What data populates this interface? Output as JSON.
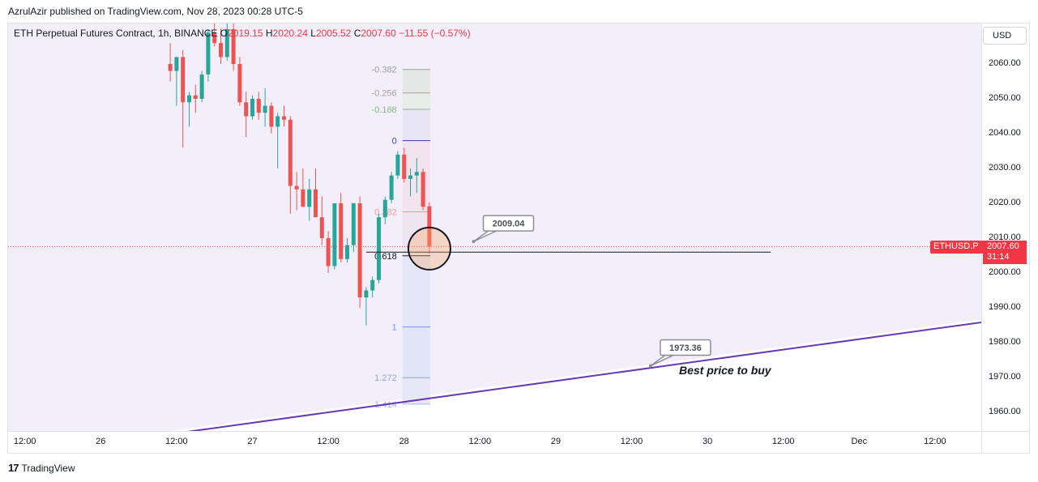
{
  "publisher_line": "AzrulAzir published on TradingView.com, Nov 28, 2023 00:28 UTC-5",
  "legend": {
    "title": "ETH Perpetual Futures Contract, 1h, BINANCE",
    "o_label": "O",
    "o": "2019.15",
    "h_label": "H",
    "h": "2020.24",
    "l_label": "L",
    "l": "2005.52",
    "c_label": "C",
    "c": "2007.60",
    "change": "−11.55 (−0.57%)"
  },
  "currency_button": "USD",
  "symbol_tag": "ETHUSD.P",
  "price_tag": {
    "price": "2007.60",
    "countdown": "31:14"
  },
  "footer_brand": "TradingView",
  "colors": {
    "up": "#26a69a",
    "down": "#ef5350",
    "trendline": "#673ab7",
    "bg_tint": "#f3effa",
    "fib_tint": "#dfe3f7"
  },
  "chart_data": {
    "type": "candlestick",
    "symbol": "ETHUSD.P",
    "timeframe": "1h",
    "ylim": [
      1954,
      2071
    ],
    "y_ticks": [
      "2060.00",
      "2050.00",
      "2040.00",
      "2030.00",
      "2020.00",
      "2010.00",
      "2000.00",
      "1990.00",
      "1980.00",
      "1970.00",
      "1960.00"
    ],
    "y_tick_values": [
      2060,
      2050,
      2040,
      2030,
      2020,
      2010,
      2000,
      1990,
      1980,
      1970,
      1960
    ],
    "x_ticks": [
      "12:00",
      "26",
      "12:00",
      "27",
      "12:00",
      "28",
      "12:00",
      "29",
      "12:00",
      "30",
      "12:00",
      "Dec",
      "12:00"
    ],
    "x_tick_hours": [
      -36,
      -24,
      -12,
      0,
      12,
      24,
      36,
      48,
      60,
      72,
      84,
      96,
      108
    ],
    "last_price": 2007.6,
    "candles_note": "hour offsets from Nov 27 00:00, OHLC",
    "candles": [
      {
        "t": -13,
        "o": 2060,
        "h": 2066,
        "l": 2055,
        "c": 2058
      },
      {
        "t": -12,
        "o": 2058,
        "h": 2062,
        "l": 2048,
        "c": 2062
      },
      {
        "t": -11,
        "o": 2062,
        "h": 2064,
        "l": 2036,
        "c": 2049
      },
      {
        "t": -10,
        "o": 2049,
        "h": 2052,
        "l": 2042,
        "c": 2051
      },
      {
        "t": -9,
        "o": 2051,
        "h": 2054,
        "l": 2046,
        "c": 2050
      },
      {
        "t": -8,
        "o": 2050,
        "h": 2058,
        "l": 2049,
        "c": 2057
      },
      {
        "t": -7,
        "o": 2057,
        "h": 2070,
        "l": 2055,
        "c": 2069
      },
      {
        "t": -6,
        "o": 2069,
        "h": 2072,
        "l": 2065,
        "c": 2066
      },
      {
        "t": -5,
        "o": 2066,
        "h": 2070,
        "l": 2060,
        "c": 2062
      },
      {
        "t": -4,
        "o": 2062,
        "h": 2072,
        "l": 2061,
        "c": 2070
      },
      {
        "t": -3,
        "o": 2070,
        "h": 2072,
        "l": 2058,
        "c": 2060
      },
      {
        "t": -2,
        "o": 2060,
        "h": 2062,
        "l": 2048,
        "c": 2049
      },
      {
        "t": -1,
        "o": 2049,
        "h": 2052,
        "l": 2039,
        "c": 2045
      },
      {
        "t": 0,
        "o": 2045,
        "h": 2051,
        "l": 2044,
        "c": 2050
      },
      {
        "t": 1,
        "o": 2050,
        "h": 2052,
        "l": 2044,
        "c": 2046
      },
      {
        "t": 2,
        "o": 2046,
        "h": 2053,
        "l": 2042,
        "c": 2048
      },
      {
        "t": 3,
        "o": 2048,
        "h": 2049,
        "l": 2040,
        "c": 2042
      },
      {
        "t": 4,
        "o": 2042,
        "h": 2046,
        "l": 2030,
        "c": 2045
      },
      {
        "t": 5,
        "o": 2045,
        "h": 2048,
        "l": 2042,
        "c": 2044
      },
      {
        "t": 6,
        "o": 2044,
        "h": 2045,
        "l": 2017,
        "c": 2025
      },
      {
        "t": 7,
        "o": 2025,
        "h": 2029,
        "l": 2018,
        "c": 2024
      },
      {
        "t": 8,
        "o": 2024,
        "h": 2030,
        "l": 2019,
        "c": 2019
      },
      {
        "t": 9,
        "o": 2019,
        "h": 2027,
        "l": 2015,
        "c": 2024
      },
      {
        "t": 10,
        "o": 2024,
        "h": 2030,
        "l": 2016,
        "c": 2016
      },
      {
        "t": 11,
        "o": 2016,
        "h": 2022,
        "l": 2008,
        "c": 2010
      },
      {
        "t": 12,
        "o": 2010,
        "h": 2012,
        "l": 2000,
        "c": 2002
      },
      {
        "t": 13,
        "o": 2002,
        "h": 2020,
        "l": 2001,
        "c": 2020
      },
      {
        "t": 14,
        "o": 2020,
        "h": 2023,
        "l": 2003,
        "c": 2004
      },
      {
        "t": 15,
        "o": 2004,
        "h": 2010,
        "l": 2003,
        "c": 2008
      },
      {
        "t": 16,
        "o": 2008,
        "h": 2020,
        "l": 2006,
        "c": 2020
      },
      {
        "t": 17,
        "o": 2020,
        "h": 2022,
        "l": 1990,
        "c": 1993
      },
      {
        "t": 18,
        "o": 1993,
        "h": 1996,
        "l": 1985,
        "c": 1995
      },
      {
        "t": 19,
        "o": 1995,
        "h": 1999,
        "l": 1993,
        "c": 1998
      },
      {
        "t": 20,
        "o": 1998,
        "h": 2017,
        "l": 1997,
        "c": 2016
      },
      {
        "t": 21,
        "o": 2016,
        "h": 2022,
        "l": 2014,
        "c": 2021
      },
      {
        "t": 22,
        "o": 2021,
        "h": 2029,
        "l": 2020,
        "c": 2028
      },
      {
        "t": 23,
        "o": 2028,
        "h": 2035,
        "l": 2027,
        "c": 2034
      },
      {
        "t": 24,
        "o": 2034,
        "h": 2036,
        "l": 2026,
        "c": 2027
      },
      {
        "t": 25,
        "o": 2027,
        "h": 2030,
        "l": 2022,
        "c": 2028
      },
      {
        "t": 26,
        "o": 2028,
        "h": 2033,
        "l": 2023,
        "c": 2029
      },
      {
        "t": 27,
        "o": 2029,
        "h": 2030,
        "l": 2018,
        "c": 2019
      },
      {
        "t": 28,
        "o": 2019.15,
        "h": 2020.24,
        "l": 2005.52,
        "c": 2007.6
      }
    ],
    "fib_retracement": {
      "t_start": 24,
      "t_end": 28,
      "price_start": 2038,
      "price_end": 1984.5,
      "levels": [
        {
          "ratio": -0.382,
          "label": "-0.382"
        },
        {
          "ratio": -0.256,
          "label": "-0.256"
        },
        {
          "ratio": -0.168,
          "label": "-0.168"
        },
        {
          "ratio": 0,
          "label": "0"
        },
        {
          "ratio": 0.382,
          "label": "0.382"
        },
        {
          "ratio": 0.618,
          "label": "0.618"
        },
        {
          "ratio": 1,
          "label": "1"
        },
        {
          "ratio": 1.272,
          "label": "1.272"
        },
        {
          "ratio": 1.414,
          "label": "1.414"
        }
      ]
    },
    "horizontal_line": {
      "price": 2006.0,
      "t_start": 18,
      "t_end": 82
    },
    "circle_marker": {
      "t": 28,
      "price": 2007.0
    },
    "trendline": {
      "t1": 0,
      "p1": 1957.0,
      "t2": 112,
      "p2": 1985.0
    },
    "price_callouts": [
      {
        "label": "2009.04",
        "t": 35,
        "price": 2009.04
      },
      {
        "label": "1973.36",
        "t": 63,
        "price": 1973.36
      }
    ],
    "annotation": "Best price to buy"
  }
}
